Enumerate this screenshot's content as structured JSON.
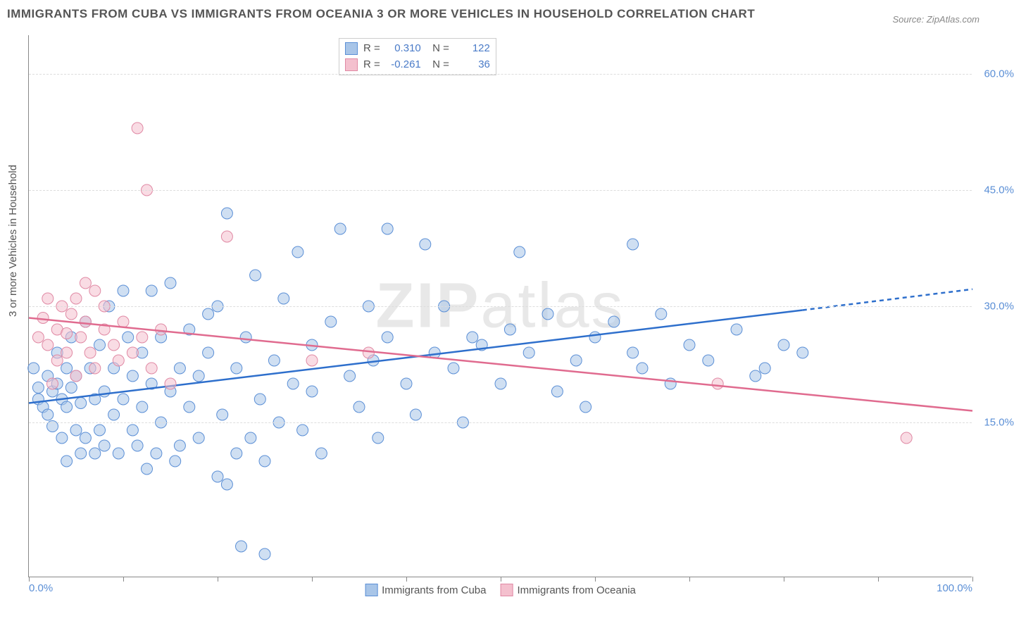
{
  "title": "IMMIGRANTS FROM CUBA VS IMMIGRANTS FROM OCEANIA 3 OR MORE VEHICLES IN HOUSEHOLD CORRELATION CHART",
  "source": "Source: ZipAtlas.com",
  "ylabel": "3 or more Vehicles in Household",
  "watermark": {
    "bold": "ZIP",
    "thin": "atlas"
  },
  "xlim": [
    0,
    100
  ],
  "ylim": [
    -5,
    65
  ],
  "xticks": [
    0,
    10,
    20,
    30,
    40,
    50,
    60,
    70,
    80,
    90,
    100
  ],
  "xtick_labels_shown": {
    "0": "0.0%",
    "100": "100.0%"
  },
  "yticks": [
    15,
    30,
    45,
    60
  ],
  "ytick_labels": [
    "15.0%",
    "30.0%",
    "45.0%",
    "60.0%"
  ],
  "grid_color": "#dddddd",
  "axis_color": "#888888",
  "background_color": "#ffffff",
  "series": [
    {
      "name": "Immigrants from Cuba",
      "fill_color": "#a8c5e8",
      "stroke_color": "#5b8fd6",
      "line_color": "#2e6fcc",
      "marker_opacity": 0.55,
      "marker_radius": 8,
      "line_width": 2.5,
      "R": "0.310",
      "N": "122",
      "trend": {
        "x1": 0,
        "y1": 17.5,
        "x2": 82,
        "y2": 29.5,
        "ext_x2": 100,
        "ext_y2": 32.2
      },
      "points": [
        [
          0.5,
          22
        ],
        [
          1,
          18
        ],
        [
          1,
          19.5
        ],
        [
          1.5,
          17
        ],
        [
          2,
          21
        ],
        [
          2,
          16
        ],
        [
          2.5,
          19
        ],
        [
          2.5,
          14.5
        ],
        [
          3,
          24
        ],
        [
          3,
          20
        ],
        [
          3.5,
          18
        ],
        [
          3.5,
          13
        ],
        [
          4,
          22
        ],
        [
          4,
          17
        ],
        [
          4,
          10
        ],
        [
          4.5,
          26
        ],
        [
          4.5,
          19.5
        ],
        [
          5,
          14
        ],
        [
          5,
          21
        ],
        [
          5.5,
          11
        ],
        [
          5.5,
          17.5
        ],
        [
          6,
          13
        ],
        [
          6,
          28
        ],
        [
          6.5,
          22
        ],
        [
          7,
          18
        ],
        [
          7,
          11
        ],
        [
          7.5,
          25
        ],
        [
          7.5,
          14
        ],
        [
          8,
          19
        ],
        [
          8,
          12
        ],
        [
          8.5,
          30
        ],
        [
          9,
          16
        ],
        [
          9,
          22
        ],
        [
          9.5,
          11
        ],
        [
          10,
          32
        ],
        [
          10,
          18
        ],
        [
          10.5,
          26
        ],
        [
          11,
          14
        ],
        [
          11,
          21
        ],
        [
          11.5,
          12
        ],
        [
          12,
          24
        ],
        [
          12,
          17
        ],
        [
          12.5,
          9
        ],
        [
          13,
          32
        ],
        [
          13,
          20
        ],
        [
          13.5,
          11
        ],
        [
          14,
          26
        ],
        [
          14,
          15
        ],
        [
          15,
          19
        ],
        [
          15,
          33
        ],
        [
          15.5,
          10
        ],
        [
          16,
          22
        ],
        [
          16,
          12
        ],
        [
          17,
          27
        ],
        [
          17,
          17
        ],
        [
          18,
          21
        ],
        [
          18,
          13
        ],
        [
          19,
          24
        ],
        [
          19,
          29
        ],
        [
          20,
          8
        ],
        [
          20,
          30
        ],
        [
          20.5,
          16
        ],
        [
          21,
          7
        ],
        [
          21,
          42
        ],
        [
          22,
          22
        ],
        [
          22,
          11
        ],
        [
          22.5,
          -1
        ],
        [
          23,
          26
        ],
        [
          23.5,
          13
        ],
        [
          24,
          34
        ],
        [
          24.5,
          18
        ],
        [
          25,
          10
        ],
        [
          25,
          -2
        ],
        [
          26,
          23
        ],
        [
          26.5,
          15
        ],
        [
          27,
          31
        ],
        [
          28,
          20
        ],
        [
          28.5,
          37
        ],
        [
          29,
          14
        ],
        [
          30,
          25
        ],
        [
          30,
          19
        ],
        [
          31,
          11
        ],
        [
          32,
          28
        ],
        [
          33,
          40
        ],
        [
          34,
          21
        ],
        [
          35,
          17
        ],
        [
          36,
          30
        ],
        [
          36.5,
          23
        ],
        [
          37,
          13
        ],
        [
          38,
          26
        ],
        [
          38,
          40
        ],
        [
          40,
          20
        ],
        [
          41,
          16
        ],
        [
          42,
          38
        ],
        [
          43,
          24
        ],
        [
          44,
          30
        ],
        [
          45,
          22
        ],
        [
          46,
          15
        ],
        [
          47,
          26
        ],
        [
          48,
          25
        ],
        [
          50,
          20
        ],
        [
          51,
          27
        ],
        [
          52,
          37
        ],
        [
          53,
          24
        ],
        [
          55,
          29
        ],
        [
          56,
          19
        ],
        [
          58,
          23
        ],
        [
          59,
          17
        ],
        [
          60,
          26
        ],
        [
          62,
          28
        ],
        [
          64,
          24
        ],
        [
          64,
          38
        ],
        [
          65,
          22
        ],
        [
          67,
          29
        ],
        [
          68,
          20
        ],
        [
          70,
          25
        ],
        [
          72,
          23
        ],
        [
          75,
          27
        ],
        [
          77,
          21
        ],
        [
          78,
          22
        ],
        [
          80,
          25
        ],
        [
          82,
          24
        ]
      ]
    },
    {
      "name": "Immigrants from Oceania",
      "fill_color": "#f4c0ce",
      "stroke_color": "#e089a4",
      "line_color": "#e06b8f",
      "marker_opacity": 0.55,
      "marker_radius": 8,
      "line_width": 2.5,
      "R": "-0.261",
      "N": "36",
      "trend": {
        "x1": 0,
        "y1": 28.5,
        "x2": 100,
        "y2": 16.5
      },
      "points": [
        [
          1,
          26
        ],
        [
          1.5,
          28.5
        ],
        [
          2,
          31
        ],
        [
          2,
          25
        ],
        [
          2.5,
          20
        ],
        [
          3,
          27
        ],
        [
          3,
          23
        ],
        [
          3.5,
          30
        ],
        [
          4,
          26.5
        ],
        [
          4,
          24
        ],
        [
          4.5,
          29
        ],
        [
          5,
          31
        ],
        [
          5,
          21
        ],
        [
          5.5,
          26
        ],
        [
          6,
          33
        ],
        [
          6,
          28
        ],
        [
          6.5,
          24
        ],
        [
          7,
          32
        ],
        [
          7,
          22
        ],
        [
          8,
          27
        ],
        [
          8,
          30
        ],
        [
          9,
          25
        ],
        [
          9.5,
          23
        ],
        [
          10,
          28
        ],
        [
          11,
          24
        ],
        [
          11.5,
          53
        ],
        [
          12,
          26
        ],
        [
          12.5,
          45
        ],
        [
          13,
          22
        ],
        [
          14,
          27
        ],
        [
          15,
          20
        ],
        [
          21,
          39
        ],
        [
          30,
          23
        ],
        [
          36,
          24
        ],
        [
          73,
          20
        ],
        [
          93,
          13
        ]
      ]
    }
  ]
}
